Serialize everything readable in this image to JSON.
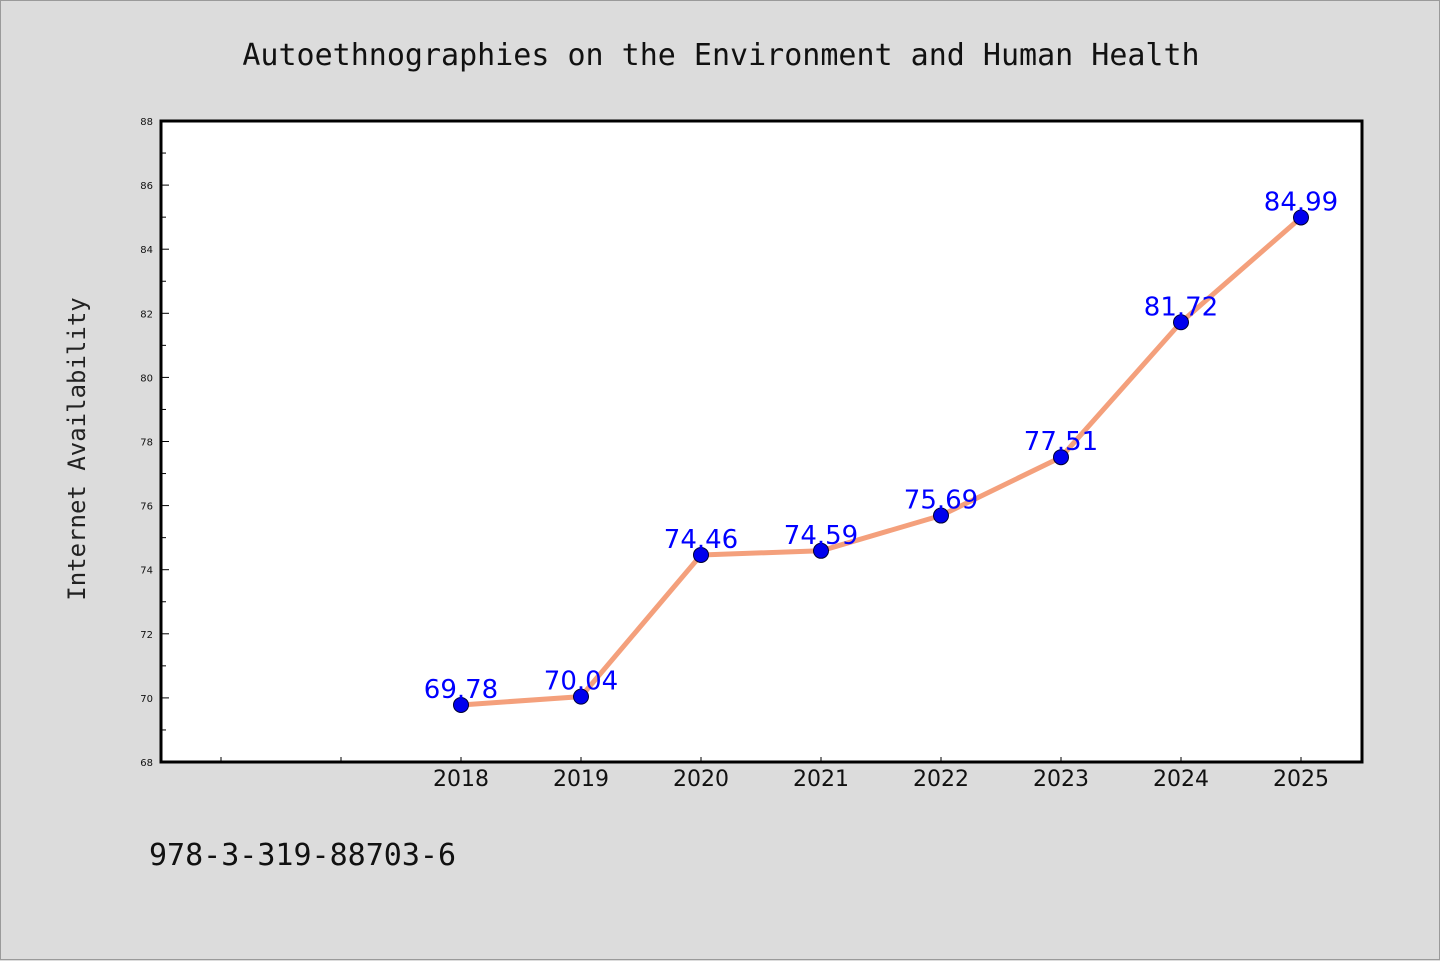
{
  "chart_data": {
    "type": "line",
    "title": "Autoethnographies on the Environment and Human Health",
    "xlabel": "",
    "ylabel": "Internet Availability",
    "categories": [
      "2018",
      "2019",
      "2020",
      "2021",
      "2022",
      "2023",
      "2024",
      "2025"
    ],
    "series": [
      {
        "values": [
          69.78,
          70.04,
          74.46,
          74.59,
          75.69,
          77.51,
          81.72,
          84.99
        ],
        "labels": [
          "69.78",
          "70.04",
          "74.46",
          "74.59",
          "75.69",
          "77.51",
          "81.72",
          "84.99"
        ]
      }
    ],
    "ylim": [
      68,
      88
    ],
    "yticks": [
      "68",
      "70",
      "72",
      "74",
      "76",
      "78",
      "80",
      "82",
      "84",
      "86",
      "88"
    ],
    "grid": false,
    "colors": {
      "line": "#f4a07c",
      "marker": "#0000ee",
      "label": "#0000ff",
      "background": "#dcdcdc",
      "plot_area": "#ffffff"
    }
  },
  "footer": {
    "code": "978-3-319-88703-6"
  }
}
